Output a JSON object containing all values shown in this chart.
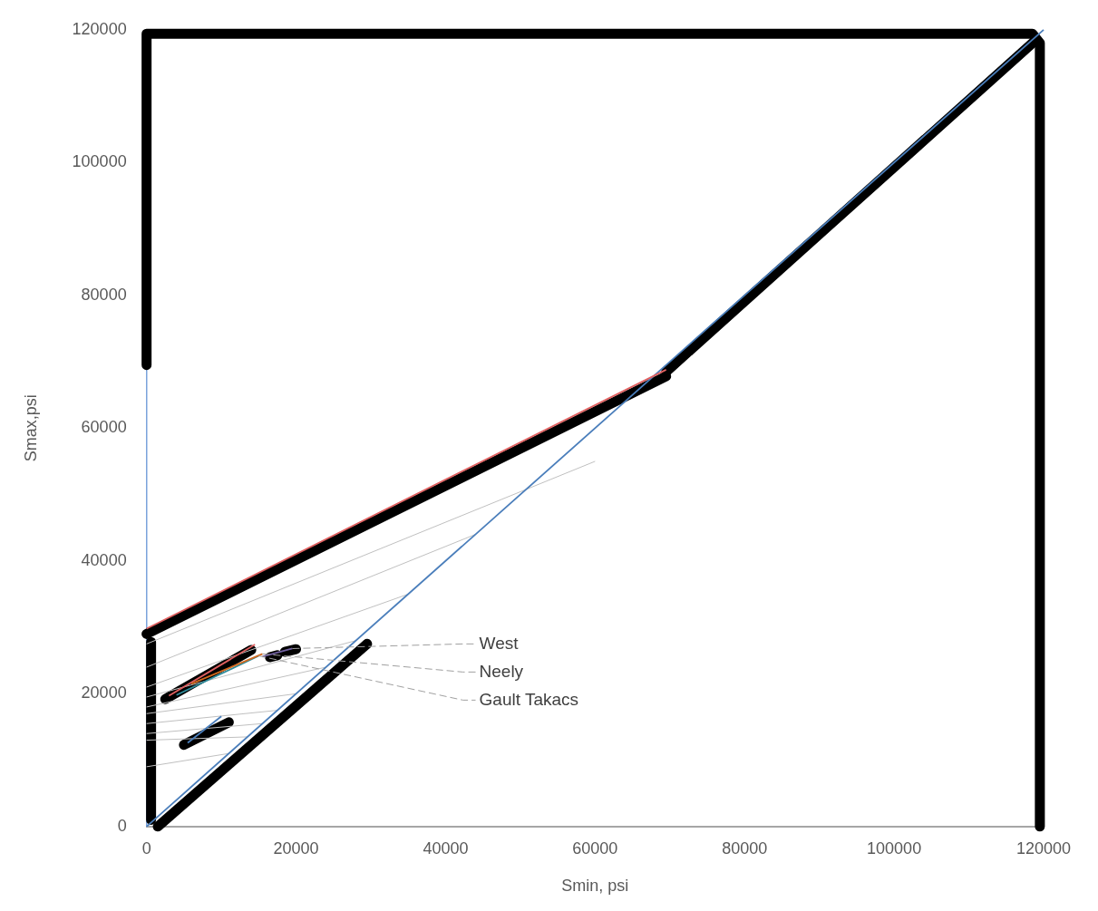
{
  "chart_data": {
    "type": "line",
    "xlabel": "Smin, psi",
    "ylabel": "Smax,psi",
    "xlim": [
      0,
      120000
    ],
    "ylim": [
      0,
      120000
    ],
    "xticks": [
      0,
      20000,
      40000,
      60000,
      80000,
      100000,
      120000
    ],
    "yticks": [
      0,
      20000,
      40000,
      60000,
      80000,
      100000,
      120000
    ],
    "grid": false,
    "legend": false,
    "marker": "none",
    "line_style": "solid",
    "series": [
      {
        "color": "#000000",
        "x": [
          0,
          0,
          118500,
          119500,
          119500
        ],
        "values": [
          69500,
          119400,
          119400,
          118000,
          0
        ]
      },
      {
        "color": "#000000",
        "x": [
          69500,
          119000
        ],
        "values": [
          68500,
          118500
        ]
      },
      {
        "color": "#000000",
        "x": [
          0,
          69500
        ],
        "values": [
          29000,
          67800
        ]
      },
      {
        "color": "#000000",
        "x": [
          600,
          600
        ],
        "values": [
          27800,
          1000
        ]
      },
      {
        "color": "#000000",
        "x": [
          1500,
          29500
        ],
        "values": [
          0,
          27500
        ]
      },
      {
        "color": "#000000",
        "x": [
          2500,
          14000
        ],
        "values": [
          19200,
          26600
        ]
      },
      {
        "color": "#000000",
        "x": [
          5000,
          11000
        ],
        "values": [
          12300,
          15700
        ]
      },
      {
        "color": "#000000",
        "x": [
          16500,
          17500
        ],
        "values": [
          25500,
          25800
        ]
      },
      {
        "color": "#000000",
        "x": [
          18500,
          20000
        ],
        "values": [
          26300,
          26700
        ]
      },
      {
        "color": "#c0c0c0",
        "x": [
          0,
          60000
        ],
        "values": [
          27500,
          55000
        ]
      },
      {
        "color": "#c0c0c0",
        "x": [
          0,
          44000
        ],
        "values": [
          24000,
          44000
        ]
      },
      {
        "color": "#c0c0c0",
        "x": [
          0,
          35000
        ],
        "values": [
          21000,
          35000
        ]
      },
      {
        "color": "#c0c0c0",
        "x": [
          0,
          28000
        ],
        "values": [
          19500,
          28000
        ]
      },
      {
        "color": "#c0c0c0",
        "x": [
          0,
          24000
        ],
        "values": [
          18000,
          24000
        ]
      },
      {
        "color": "#c0c0c0",
        "x": [
          0,
          20000
        ],
        "values": [
          17000,
          20000
        ]
      },
      {
        "color": "#c0c0c0",
        "x": [
          0,
          17500
        ],
        "values": [
          15500,
          17500
        ]
      },
      {
        "color": "#c0c0c0",
        "x": [
          0,
          15500
        ],
        "values": [
          14000,
          15500
        ]
      },
      {
        "color": "#c0c0c0",
        "x": [
          0,
          13500
        ],
        "values": [
          13000,
          13500
        ]
      },
      {
        "color": "#c0c0c0",
        "x": [
          0,
          11000
        ],
        "values": [
          9000,
          11000
        ]
      },
      {
        "color": "#4a7ebb",
        "x": [
          0,
          120000
        ],
        "values": [
          0,
          120000
        ]
      },
      {
        "color": "#e06060",
        "x": [
          0,
          69500
        ],
        "values": [
          29800,
          68800
        ]
      },
      {
        "color": "#e06060",
        "x": [
          3000,
          14500
        ],
        "values": [
          19700,
          27400
        ]
      },
      {
        "color": "#2e8b9a",
        "x": [
          4000,
          15000
        ],
        "values": [
          19800,
          25700
        ]
      },
      {
        "color": "#d2691e",
        "x": [
          6000,
          15500
        ],
        "values": [
          21500,
          26000
        ]
      },
      {
        "color": "#7060a0",
        "x": [
          15500,
          19500
        ],
        "values": [
          25600,
          26800
        ]
      },
      {
        "color": "#4a7ebb",
        "x": [
          5500,
          10000
        ],
        "values": [
          12600,
          16600
        ]
      }
    ],
    "annotations": [
      {
        "text": "West",
        "x": 19500,
        "y": 26800
      },
      {
        "text": "Neely",
        "x": 15500,
        "y": 26000
      },
      {
        "text": "Gault Takacs",
        "x": 15000,
        "y": 25700
      }
    ]
  }
}
